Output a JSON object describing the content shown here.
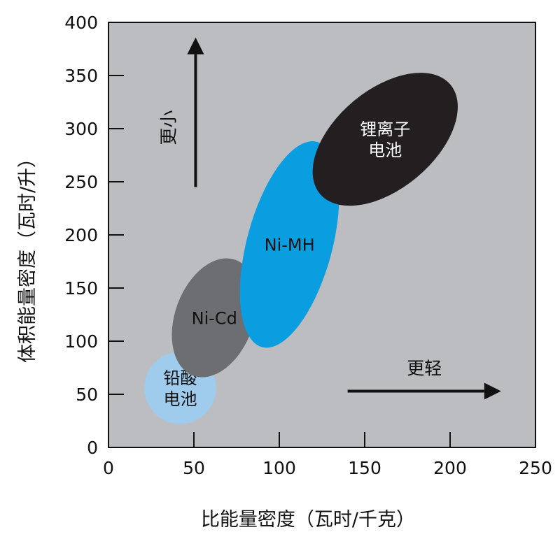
{
  "chart_data": {
    "type": "scatter",
    "title": "",
    "xlabel": "比能量密度（瓦时/千克）",
    "ylabel": "体积能量密度（瓦时/升）",
    "xlim": [
      0,
      250
    ],
    "ylim": [
      0,
      400
    ],
    "xticks": [
      "0",
      "50",
      "100",
      "150",
      "200",
      "250"
    ],
    "yticks": [
      "0",
      "50",
      "100",
      "150",
      "200",
      "250",
      "300",
      "350",
      "400"
    ],
    "grid": false,
    "background_color": "#bcbdc0",
    "regions": [
      {
        "label_lines": [
          "铅酸",
          "电池"
        ],
        "shape": "circle",
        "center": [
          42,
          56
        ],
        "radius_x": 21,
        "radius_y": 34,
        "angle_deg": 0,
        "color": "#9fcbec",
        "label_color": "#111111"
      },
      {
        "label_lines": [
          "Ni-Cd"
        ],
        "shape": "ellipse",
        "center": [
          62,
          122
        ],
        "radius_x": 23,
        "radius_y": 58,
        "angle_deg": 20,
        "color": "#6d6e71",
        "label_color": "#111111"
      },
      {
        "label_lines": [
          "Ni-MH"
        ],
        "shape": "ellipse",
        "center": [
          106,
          191
        ],
        "radius_x": 25,
        "radius_y": 100,
        "angle_deg": 15,
        "color": "#0a9ee0",
        "label_color": "#111111"
      },
      {
        "label_lines": [
          "锂离子",
          "电池"
        ],
        "shape": "ellipse",
        "center": [
          162,
          290
        ],
        "radius_x": 29,
        "radius_y": 80,
        "angle_deg": 50,
        "color": "#231f20",
        "label_color": "#ffffff"
      }
    ],
    "annotations": [
      {
        "text": "更小",
        "arrow_direction": "up",
        "arrow_from": [
          51,
          245
        ],
        "arrow_to": [
          51,
          370
        ]
      },
      {
        "text": "更轻",
        "arrow_direction": "right",
        "arrow_from": [
          140,
          53
        ],
        "arrow_to": [
          220,
          53
        ]
      }
    ]
  }
}
